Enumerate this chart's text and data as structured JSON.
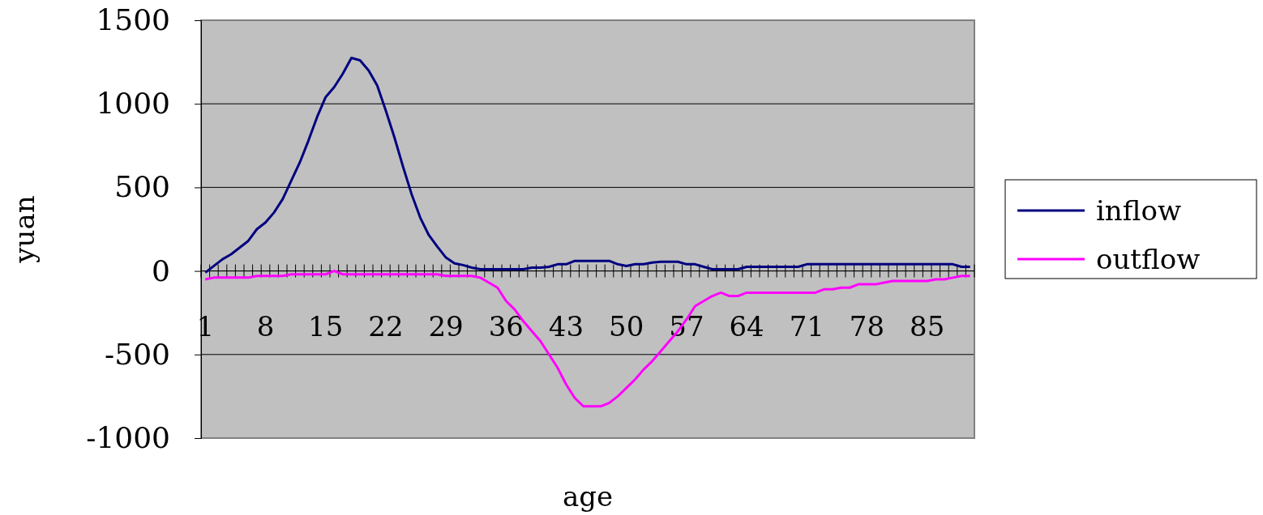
{
  "chart_data": {
    "type": "line",
    "xlabel": "age",
    "ylabel": "yuan",
    "categories": [
      "1",
      null,
      null,
      null,
      null,
      null,
      null,
      "8",
      null,
      null,
      null,
      null,
      null,
      null,
      "15",
      null,
      null,
      null,
      null,
      null,
      null,
      "22",
      null,
      null,
      null,
      null,
      null,
      null,
      "29",
      null,
      null,
      null,
      null,
      null,
      null,
      "36",
      null,
      null,
      null,
      null,
      null,
      null,
      "43",
      null,
      null,
      null,
      null,
      null,
      null,
      "50",
      null,
      null,
      null,
      null,
      null,
      null,
      "57",
      null,
      null,
      null,
      null,
      null,
      null,
      "64",
      null,
      null,
      null,
      null,
      null,
      null,
      "71",
      null,
      null,
      null,
      null,
      null,
      null,
      "78",
      null,
      null,
      null,
      null,
      null,
      null,
      "85",
      null,
      null,
      null,
      null,
      null
    ],
    "ylim": [
      -1000,
      1500
    ],
    "yticks": [
      -1000,
      -500,
      0,
      500,
      1000,
      1500
    ],
    "grid": "y",
    "legend": "right",
    "marker": "none",
    "series": [
      {
        "name": "inflow",
        "color": "#000080",
        "values": [
          -10,
          30,
          70,
          100,
          140,
          180,
          250,
          290,
          350,
          430,
          540,
          650,
          780,
          920,
          1040,
          1100,
          1180,
          1275,
          1260,
          1200,
          1110,
          960,
          800,
          625,
          460,
          320,
          215,
          145,
          80,
          45,
          35,
          20,
          10,
          10,
          10,
          10,
          10,
          10,
          20,
          20,
          25,
          40,
          40,
          60,
          60,
          60,
          60,
          60,
          40,
          30,
          40,
          40,
          50,
          55,
          55,
          55,
          40,
          40,
          25,
          10,
          10,
          10,
          10,
          25,
          25,
          25,
          25,
          25,
          25,
          25,
          40,
          40,
          40,
          40,
          40,
          40,
          40,
          40,
          40,
          40,
          40,
          40,
          40,
          40,
          40,
          40,
          40,
          40,
          25,
          25
        ]
      },
      {
        "name": "outflow",
        "color": "#ff00ff",
        "values": [
          -50,
          -40,
          -40,
          -40,
          -40,
          -40,
          -30,
          -30,
          -30,
          -30,
          -20,
          -20,
          -20,
          -20,
          -20,
          0,
          -20,
          -20,
          -20,
          -20,
          -20,
          -20,
          -20,
          -20,
          -20,
          -20,
          -20,
          -20,
          -30,
          -30,
          -30,
          -30,
          -40,
          -70,
          -100,
          -180,
          -230,
          -300,
          -360,
          -420,
          -500,
          -580,
          -680,
          -760,
          -810,
          -810,
          -810,
          -790,
          -750,
          -700,
          -650,
          -590,
          -540,
          -480,
          -420,
          -360,
          -290,
          -210,
          -180,
          -150,
          -130,
          -150,
          -150,
          -130,
          -130,
          -130,
          -130,
          -130,
          -130,
          -130,
          -130,
          -130,
          -110,
          -110,
          -100,
          -100,
          -80,
          -80,
          -80,
          -70,
          -60,
          -60,
          -60,
          -60,
          -60,
          -50,
          -50,
          -40,
          -30,
          -30
        ]
      }
    ]
  }
}
